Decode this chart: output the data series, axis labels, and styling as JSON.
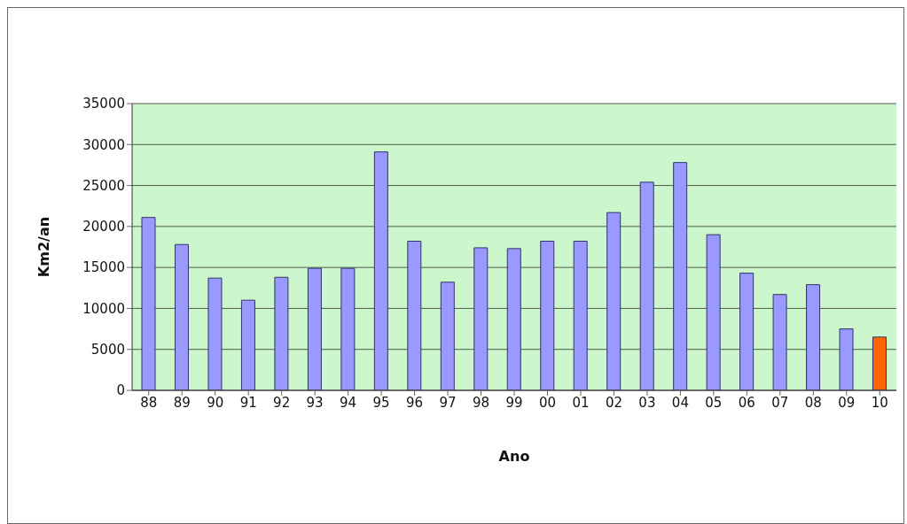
{
  "chart_data": {
    "type": "bar",
    "xlabel": "Ano",
    "ylabel": "Km2/an",
    "categories": [
      "88",
      "89",
      "90",
      "91",
      "92",
      "93",
      "94",
      "95",
      "96",
      "97",
      "98",
      "99",
      "00",
      "01",
      "02",
      "03",
      "04",
      "05",
      "06",
      "07",
      "08",
      "09",
      "10"
    ],
    "values": [
      21100,
      17800,
      13700,
      11000,
      13800,
      14900,
      14900,
      29100,
      18200,
      13200,
      17400,
      17300,
      18200,
      18200,
      21700,
      25400,
      27800,
      19000,
      14300,
      11700,
      12900,
      7500,
      6500
    ],
    "colors": [
      "#9999ff",
      "#9999ff",
      "#9999ff",
      "#9999ff",
      "#9999ff",
      "#9999ff",
      "#9999ff",
      "#9999ff",
      "#9999ff",
      "#9999ff",
      "#9999ff",
      "#9999ff",
      "#9999ff",
      "#9999ff",
      "#9999ff",
      "#9999ff",
      "#9999ff",
      "#9999ff",
      "#9999ff",
      "#9999ff",
      "#9999ff",
      "#9999ff",
      "#ff6600"
    ],
    "ylim": [
      0,
      35000
    ],
    "yticks": [
      0,
      5000,
      10000,
      15000,
      20000,
      25000,
      30000,
      35000
    ],
    "grid": "y"
  }
}
